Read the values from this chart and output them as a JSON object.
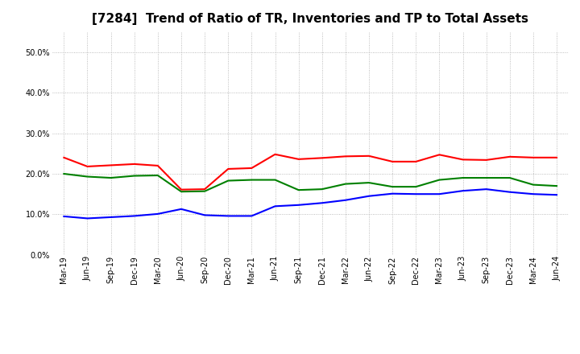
{
  "title": "[7284]  Trend of Ratio of TR, Inventories and TP to Total Assets",
  "x_labels": [
    "Mar-19",
    "Jun-19",
    "Sep-19",
    "Dec-19",
    "Mar-20",
    "Jun-20",
    "Sep-20",
    "Dec-20",
    "Mar-21",
    "Jun-21",
    "Sep-21",
    "Dec-21",
    "Mar-22",
    "Jun-22",
    "Sep-22",
    "Dec-22",
    "Mar-23",
    "Jun-23",
    "Sep-23",
    "Dec-23",
    "Mar-24",
    "Jun-24"
  ],
  "trade_receivables": [
    0.24,
    0.218,
    0.221,
    0.224,
    0.22,
    0.161,
    0.162,
    0.212,
    0.214,
    0.248,
    0.236,
    0.239,
    0.243,
    0.244,
    0.23,
    0.23,
    0.247,
    0.235,
    0.234,
    0.242,
    0.24,
    0.24
  ],
  "inventories": [
    0.095,
    0.09,
    0.093,
    0.096,
    0.101,
    0.113,
    0.098,
    0.096,
    0.096,
    0.12,
    0.123,
    0.128,
    0.135,
    0.145,
    0.151,
    0.15,
    0.15,
    0.158,
    0.162,
    0.155,
    0.15,
    0.148
  ],
  "trade_payables": [
    0.2,
    0.193,
    0.19,
    0.195,
    0.196,
    0.156,
    0.157,
    0.183,
    0.185,
    0.185,
    0.16,
    0.162,
    0.175,
    0.178,
    0.168,
    0.168,
    0.185,
    0.19,
    0.19,
    0.19,
    0.173,
    0.17
  ],
  "tr_color": "#ff0000",
  "inv_color": "#0000ff",
  "tp_color": "#008000",
  "ylim": [
    0.0,
    0.55
  ],
  "yticks": [
    0.0,
    0.1,
    0.2,
    0.3,
    0.4,
    0.5
  ],
  "background_color": "#ffffff",
  "grid_color": "#aaaaaa",
  "title_fontsize": 11,
  "tick_fontsize": 7,
  "legend_fontsize": 8.5
}
